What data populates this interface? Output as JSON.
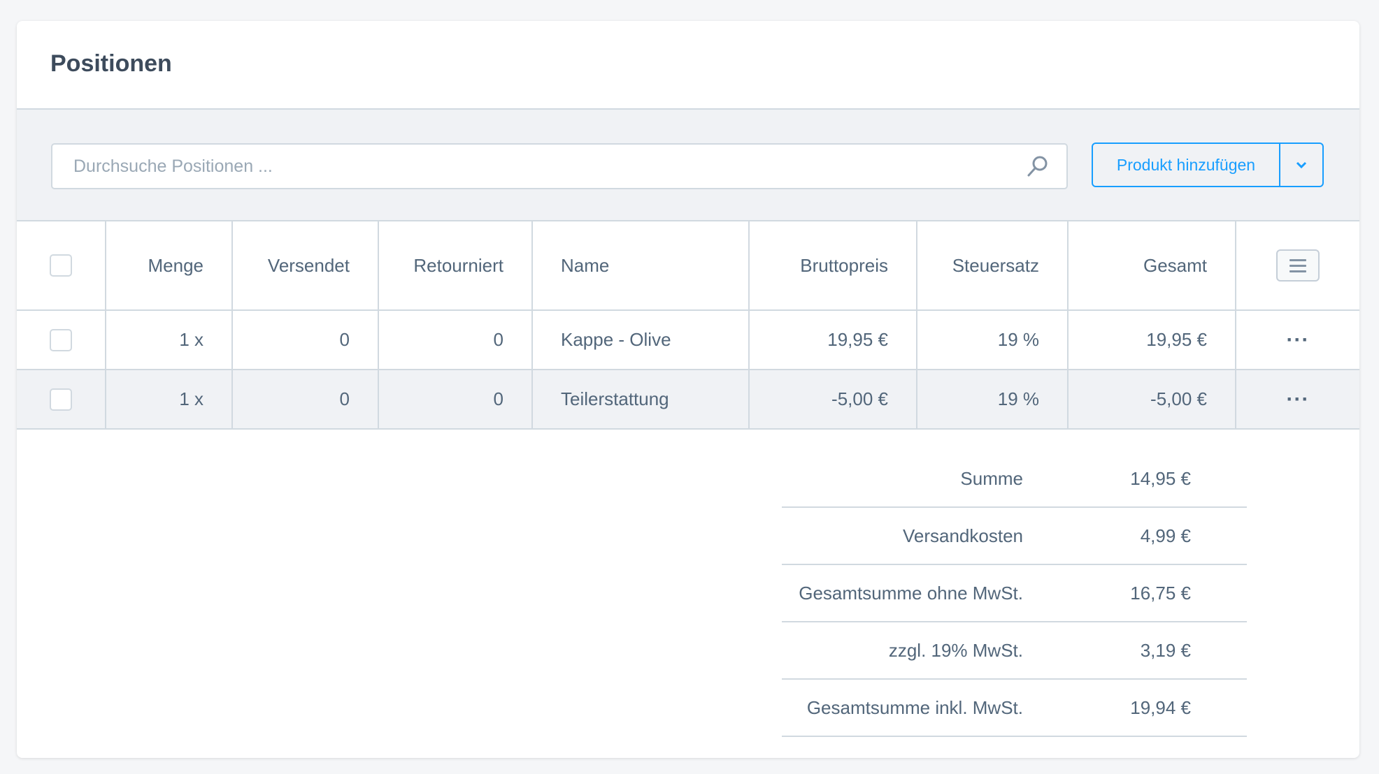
{
  "title": "Positionen",
  "search": {
    "placeholder": "Durchsuche Positionen ...",
    "value": ""
  },
  "add_button": {
    "label": "Produkt hinzufügen"
  },
  "colors": {
    "accent": "#189eff",
    "text": "#52667a",
    "border": "#d1d9e0"
  },
  "columns": [
    "Menge",
    "Versendet",
    "Retourniert",
    "Name",
    "Bruttopreis",
    "Steuersatz",
    "Gesamt"
  ],
  "rows": [
    {
      "menge": "1 x",
      "versendet": "0",
      "retourniert": "0",
      "name": "Kappe - Olive",
      "bruttopreis": "19,95 €",
      "steuersatz": "19 %",
      "gesamt": "19,95 €"
    },
    {
      "menge": "1 x",
      "versendet": "0",
      "retourniert": "0",
      "name": "Teilerstattung",
      "bruttopreis": "-5,00 €",
      "steuersatz": "19 %",
      "gesamt": "-5,00 €"
    }
  ],
  "summary": [
    {
      "label": "Summe",
      "value": "14,95 €"
    },
    {
      "label": "Versandkosten",
      "value": "4,99 €"
    },
    {
      "label": "Gesamtsumme ohne MwSt.",
      "value": "16,75 €"
    },
    {
      "label": "zzgl. 19% MwSt.",
      "value": "3,19 €"
    },
    {
      "label": "Gesamtsumme inkl. MwSt.",
      "value": "19,94 €"
    }
  ]
}
